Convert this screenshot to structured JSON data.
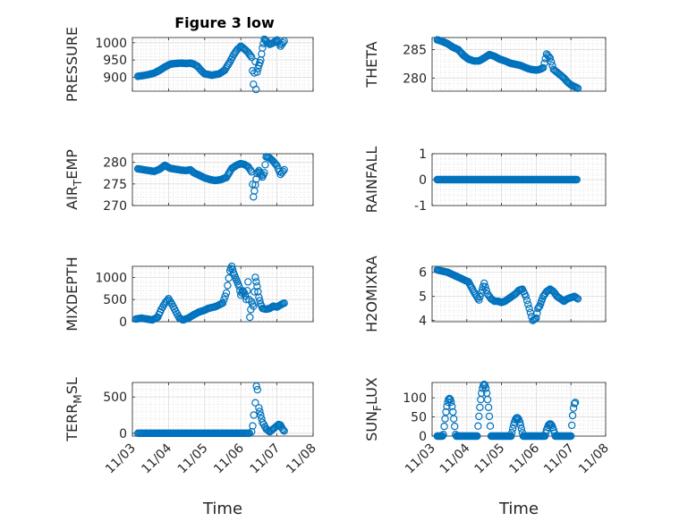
{
  "figure": {
    "title": "Figure 3 low"
  },
  "style": {
    "marker_color": "#0072BD",
    "axis_color": "#262626",
    "grid_color": "#d6d6d6"
  },
  "chart_data": [
    {
      "type": "scatter",
      "title": "Figure 3 low",
      "ylabel": "PRESSURE",
      "xlabel": "",
      "ylim": [
        860,
        1015
      ],
      "yticks": [
        900,
        950,
        1000
      ],
      "xlim": [
        3,
        8
      ],
      "xticks": [
        "11/03",
        "11/04",
        "11/05",
        "11/06",
        "11/07",
        "11/08"
      ],
      "show_xtick_labels": false,
      "grid": true,
      "minor_grid": true,
      "x": [
        3.15,
        3.3,
        3.45,
        3.6,
        3.75,
        3.9,
        4.05,
        4.2,
        4.35,
        4.5,
        4.6,
        4.7,
        4.8,
        4.9,
        5.0,
        5.2,
        5.4,
        5.55,
        5.7,
        5.8,
        5.9,
        6.0,
        6.1,
        6.2,
        6.3,
        6.35,
        6.4,
        6.42,
        6.45,
        6.5,
        6.55,
        6.6,
        6.65,
        6.7,
        6.8,
        6.9,
        7.0,
        7.1,
        7.2
      ],
      "y": [
        903,
        905,
        908,
        912,
        920,
        930,
        938,
        940,
        941,
        940,
        941,
        938,
        932,
        920,
        910,
        906,
        910,
        920,
        945,
        965,
        980,
        990,
        982,
        972,
        958,
        880,
        945,
        865,
        915,
        935,
        950,
        985,
        1010,
        1005,
        995,
        1000,
        1008,
        990,
        1005
      ]
    },
    {
      "type": "scatter",
      "title": "",
      "ylabel": "THETA",
      "xlabel": "",
      "ylim": [
        277.7,
        287.1
      ],
      "yticks": [
        280,
        285
      ],
      "xlim": [
        3,
        8
      ],
      "xticks": [
        "11/03",
        "11/04",
        "11/05",
        "11/06",
        "11/07",
        "11/08"
      ],
      "show_xtick_labels": false,
      "grid": true,
      "minor_grid": true,
      "x": [
        3.15,
        3.3,
        3.45,
        3.6,
        3.75,
        3.9,
        4.05,
        4.2,
        4.35,
        4.5,
        4.65,
        4.8,
        4.95,
        5.1,
        5.25,
        5.4,
        5.55,
        5.7,
        5.85,
        6.0,
        6.1,
        6.2,
        6.3,
        6.4,
        6.5,
        6.6,
        6.7,
        6.8,
        6.9,
        7.0,
        7.1,
        7.2
      ],
      "y": [
        286.7,
        286.4,
        286.0,
        285.4,
        285.0,
        284.0,
        283.3,
        283.0,
        283.0,
        283.5,
        284.1,
        283.8,
        283.3,
        283.0,
        282.6,
        282.4,
        282.2,
        281.8,
        281.5,
        281.4,
        281.5,
        281.8,
        284.2,
        283.5,
        281.5,
        281.0,
        280.5,
        280.0,
        279.3,
        278.8,
        278.5,
        278.2
      ]
    },
    {
      "type": "scatter",
      "title": "",
      "ylabel": "AIR_TEMP",
      "xlabel": "",
      "ylim": [
        270,
        282
      ],
      "yticks": [
        270,
        275,
        280
      ],
      "xlim": [
        3,
        8
      ],
      "xticks": [
        "11/03",
        "11/04",
        "11/05",
        "11/06",
        "11/07",
        "11/08"
      ],
      "show_xtick_labels": false,
      "grid": true,
      "minor_grid": true,
      "x": [
        3.15,
        3.3,
        3.45,
        3.6,
        3.75,
        3.9,
        4.05,
        4.2,
        4.35,
        4.5,
        4.6,
        4.7,
        4.8,
        4.9,
        5.0,
        5.15,
        5.3,
        5.45,
        5.6,
        5.75,
        5.9,
        6.0,
        6.1,
        6.2,
        6.3,
        6.35,
        6.4,
        6.45,
        6.5,
        6.55,
        6.6,
        6.65,
        6.7,
        6.8,
        6.9,
        7.0,
        7.1,
        7.2
      ],
      "y": [
        278.5,
        278.3,
        278.1,
        277.9,
        278.4,
        279.3,
        278.6,
        278.4,
        278.2,
        278.1,
        278.3,
        277.6,
        277.2,
        276.8,
        276.4,
        276.0,
        275.8,
        276.0,
        276.5,
        278.6,
        279.4,
        279.7,
        279.5,
        279.0,
        277.8,
        272.0,
        274.8,
        277.4,
        278.1,
        277.3,
        276.6,
        277.6,
        281.3,
        281.0,
        280.2,
        279.2,
        277.2,
        278.3
      ]
    },
    {
      "type": "scatter",
      "title": "",
      "ylabel": "RAINFALL",
      "xlabel": "",
      "ylim": [
        -1,
        1
      ],
      "yticks": [
        -1,
        0,
        1
      ],
      "xlim": [
        3,
        8
      ],
      "xticks": [
        "11/03",
        "11/04",
        "11/05",
        "11/06",
        "11/07",
        "11/08"
      ],
      "show_xtick_labels": false,
      "grid": true,
      "minor_grid": true,
      "x_range": [
        3.15,
        7.2
      ],
      "constant_y": 0
    },
    {
      "type": "scatter",
      "title": "",
      "ylabel": "MIXDEPTH",
      "xlabel": "",
      "ylim": [
        0,
        1250
      ],
      "yticks": [
        0,
        500,
        1000
      ],
      "xlim": [
        3,
        8
      ],
      "xticks": [
        "11/03",
        "11/04",
        "11/05",
        "11/06",
        "11/07",
        "11/08"
      ],
      "show_xtick_labels": false,
      "grid": true,
      "minor_grid": true,
      "x": [
        3.1,
        3.25,
        3.4,
        3.55,
        3.7,
        3.8,
        3.9,
        4.0,
        4.1,
        4.2,
        4.3,
        4.4,
        4.55,
        4.7,
        4.85,
        5.0,
        5.1,
        5.2,
        5.3,
        5.4,
        5.5,
        5.6,
        5.7,
        5.75,
        5.8,
        5.85,
        5.9,
        5.95,
        6.0,
        6.05,
        6.1,
        6.15,
        6.2,
        6.25,
        6.3,
        6.35,
        6.4,
        6.45,
        6.5,
        6.55,
        6.6,
        6.7,
        6.8,
        6.9,
        7.0,
        7.1,
        7.2
      ],
      "y": [
        60,
        80,
        60,
        40,
        100,
        280,
        420,
        520,
        390,
        230,
        80,
        40,
        80,
        160,
        220,
        260,
        300,
        320,
        340,
        380,
        420,
        650,
        1150,
        1250,
        1100,
        1000,
        900,
        800,
        600,
        700,
        650,
        500,
        900,
        100,
        450,
        350,
        1000,
        800,
        550,
        400,
        300,
        280,
        300,
        350,
        330,
        380,
        420
      ]
    },
    {
      "type": "scatter",
      "title": "",
      "ylabel": "H2OMIXRA",
      "xlabel": "",
      "ylim": [
        3.95,
        6.25
      ],
      "yticks": [
        4,
        5,
        6
      ],
      "xlim": [
        3,
        8
      ],
      "xticks": [
        "11/03",
        "11/04",
        "11/05",
        "11/06",
        "11/07",
        "11/08"
      ],
      "show_xtick_labels": false,
      "grid": true,
      "minor_grid": true,
      "x": [
        3.15,
        3.3,
        3.45,
        3.6,
        3.75,
        3.9,
        4.05,
        4.2,
        4.35,
        4.5,
        4.6,
        4.7,
        4.8,
        4.9,
        5.0,
        5.1,
        5.2,
        5.3,
        5.4,
        5.5,
        5.6,
        5.7,
        5.8,
        5.9,
        6.0,
        6.05,
        6.1,
        6.15,
        6.2,
        6.3,
        6.4,
        6.5,
        6.6,
        6.7,
        6.8,
        6.9,
        7.0,
        7.1,
        7.2
      ],
      "y": [
        6.1,
        6.05,
        6.0,
        5.9,
        5.8,
        5.7,
        5.6,
        5.2,
        4.85,
        5.55,
        5.1,
        4.9,
        4.8,
        4.8,
        4.75,
        4.8,
        4.9,
        5.0,
        5.1,
        5.25,
        5.3,
        5.0,
        4.5,
        4.0,
        4.1,
        4.5,
        4.6,
        4.8,
        5.0,
        5.2,
        5.3,
        5.2,
        5.0,
        4.9,
        4.8,
        4.9,
        4.95,
        5.0,
        4.9
      ]
    },
    {
      "type": "scatter",
      "title": "",
      "ylabel": "TERR_MSL",
      "xlabel": "Time",
      "ylim": [
        -40,
        700
      ],
      "yticks": [
        0,
        500
      ],
      "xlim": [
        3,
        8
      ],
      "xticks": [
        "11/03",
        "11/04",
        "11/05",
        "11/06",
        "11/07",
        "11/08"
      ],
      "show_xtick_labels": true,
      "grid": true,
      "minor_grid": true,
      "zero_range": [
        3.15,
        6.25
      ],
      "x": [
        6.3,
        6.33,
        6.36,
        6.4,
        6.43,
        6.46,
        6.5,
        6.55,
        6.6,
        6.7,
        6.8,
        6.9,
        7.0,
        7.05,
        7.1,
        7.15,
        7.2
      ],
      "y": [
        20,
        100,
        250,
        420,
        650,
        600,
        350,
        250,
        150,
        60,
        20,
        60,
        100,
        120,
        110,
        60,
        30
      ]
    },
    {
      "type": "scatter",
      "title": "",
      "ylabel": "SUN_FLUX",
      "xlabel": "Time",
      "ylim": [
        0,
        140
      ],
      "yticks": [
        0,
        50,
        100
      ],
      "xlim": [
        3,
        8
      ],
      "xticks": [
        "11/03",
        "11/04",
        "11/05",
        "11/06",
        "11/07",
        "11/08"
      ],
      "show_xtick_labels": true,
      "grid": true,
      "minor_grid": true,
      "diurnal_peaks": [
        {
          "center": 3.5,
          "peak": 98,
          "width": 0.18
        },
        {
          "center": 4.5,
          "peak": 135,
          "width": 0.2
        },
        {
          "center": 5.45,
          "peak": 48,
          "width": 0.17
        },
        {
          "center": 6.4,
          "peak": 32,
          "width": 0.15
        },
        {
          "center": 7.12,
          "peak": 88,
          "width": 0.12
        }
      ],
      "x_range": [
        3.15,
        7.15
      ]
    }
  ]
}
